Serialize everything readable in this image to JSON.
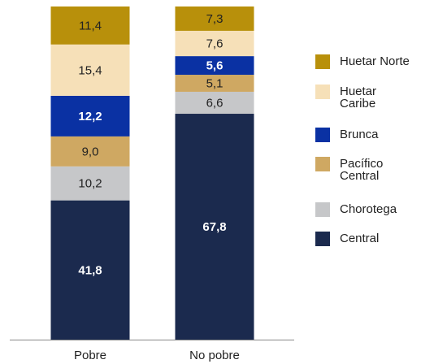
{
  "chart_data": {
    "type": "stacked_bar",
    "categories": [
      "Pobre",
      "No pobre"
    ],
    "ylim": [
      0,
      100
    ],
    "series": [
      {
        "name": "Central",
        "color": "#1b2a4e",
        "values": [
          41.8,
          67.8
        ],
        "value_labels": [
          "41,8",
          "67,8"
        ]
      },
      {
        "name": "Chorotega",
        "color": "#c6c7c9",
        "values": [
          10.2,
          6.6
        ],
        "value_labels": [
          "10,2",
          "6,6"
        ]
      },
      {
        "name": "Pacífico Central",
        "color": "#cfa862",
        "values": [
          9.0,
          5.1
        ],
        "value_labels": [
          "9,0",
          "5,1"
        ]
      },
      {
        "name": "Brunca",
        "color": "#0a31a3",
        "values": [
          12.2,
          5.6
        ],
        "value_labels": [
          "12,2",
          "5,6"
        ]
      },
      {
        "name": "Huetar Caribe",
        "color": "#f6e0b8",
        "values": [
          15.4,
          7.6
        ],
        "value_labels": [
          "15,4",
          "7,6"
        ]
      },
      {
        "name": "Huetar Norte",
        "color": "#b8900b",
        "values": [
          11.4,
          7.3
        ],
        "value_labels": [
          "11,4",
          "7,3"
        ]
      }
    ]
  }
}
